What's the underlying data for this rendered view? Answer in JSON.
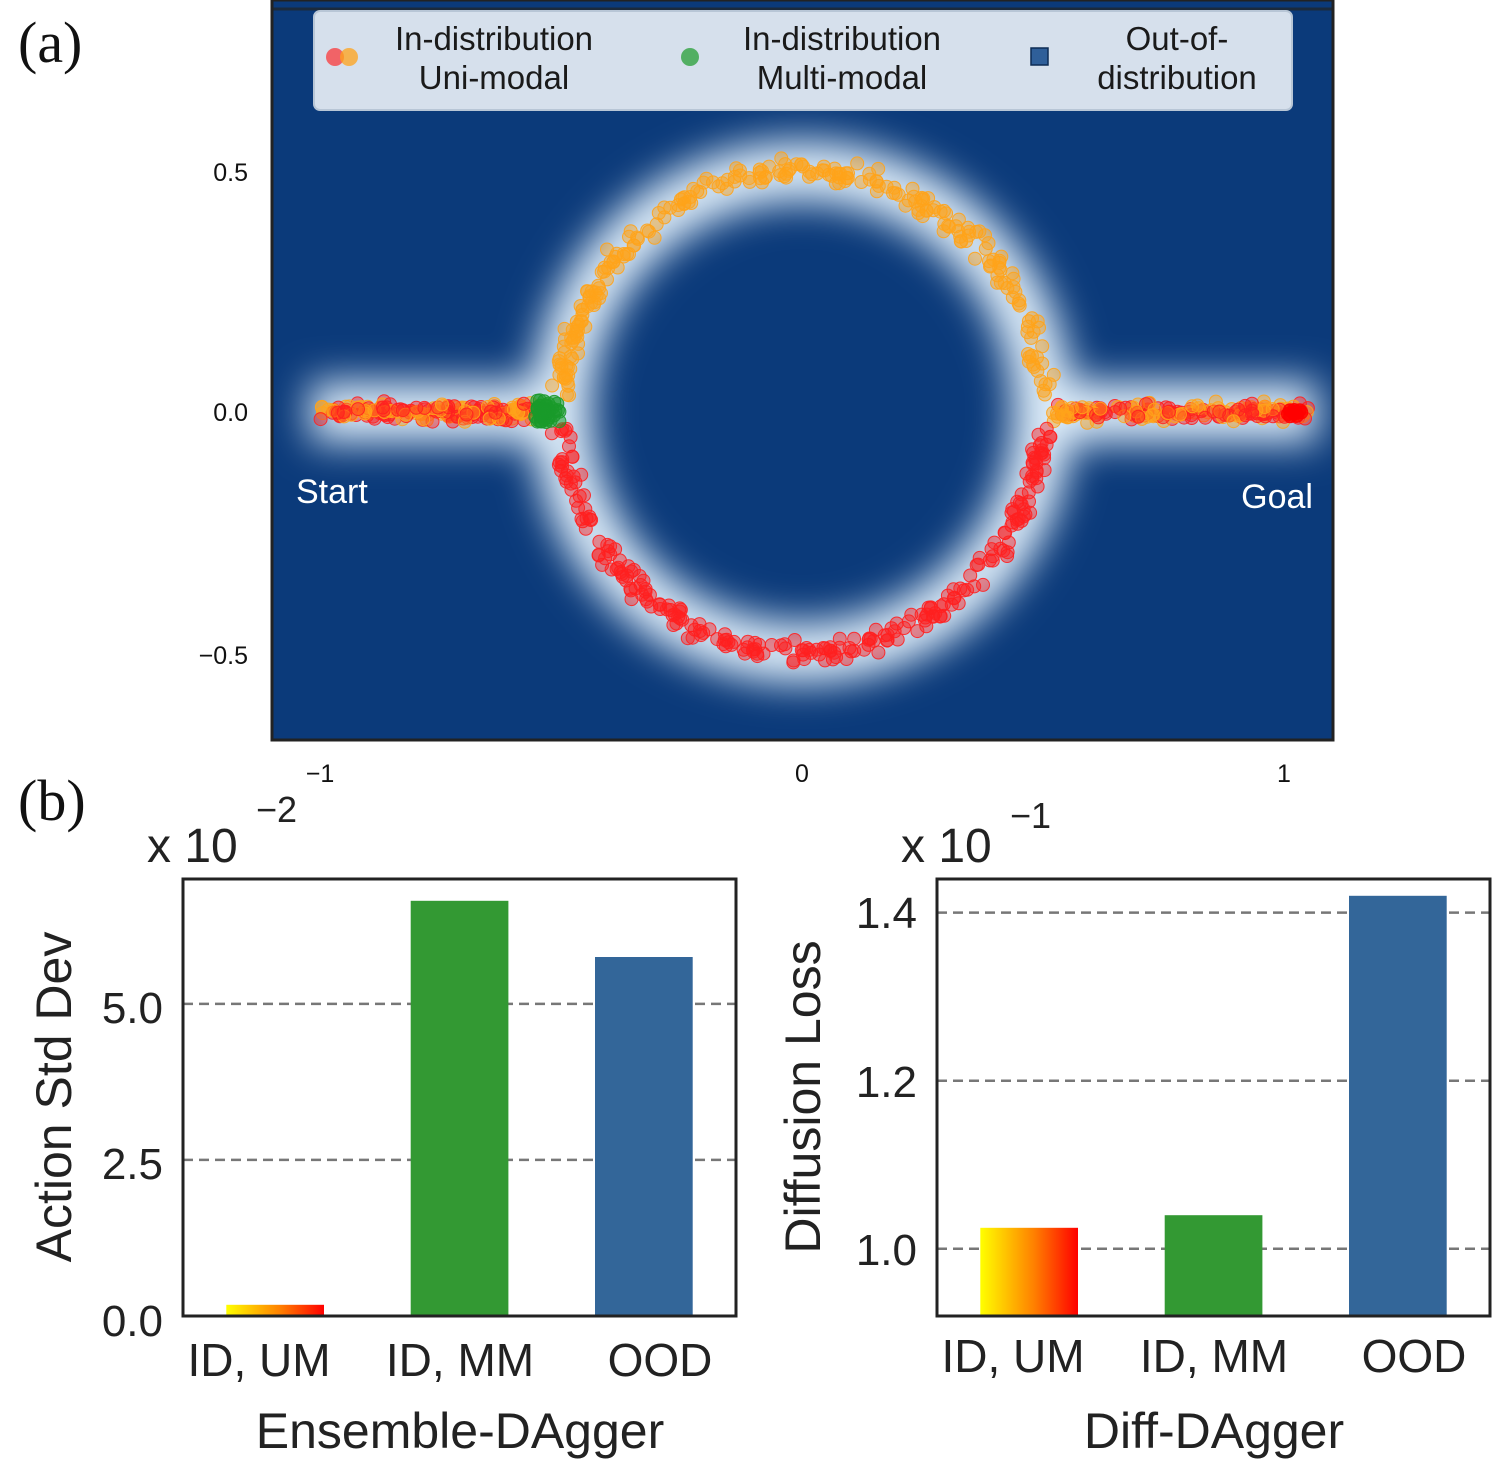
{
  "panel_labels": {
    "a": "(a)",
    "b": "(b)"
  },
  "chart_data": [
    {
      "id": "panel-a",
      "type": "scatter",
      "title": "",
      "xlabel": "",
      "ylabel": "",
      "xlim": [
        -1.1,
        1.1
      ],
      "ylim": [
        -0.68,
        0.84
      ],
      "x_ticks": [
        -1,
        0,
        1
      ],
      "x_tick_labels": [
        "−1",
        "0",
        "1"
      ],
      "y_ticks": [
        0.5,
        0.0,
        -0.5
      ],
      "y_tick_labels": [
        "0.5",
        "0.0",
        "−0.5"
      ],
      "background_color": "#0b3a7a",
      "annotations": [
        {
          "text": "Start",
          "x": -1.05,
          "y": -0.17
        },
        {
          "text": "Goal",
          "x": 1.05,
          "y": -0.18
        }
      ],
      "legend": {
        "placement": "top-center",
        "entries": [
          {
            "label_lines": [
              "In-distribution",
              "Uni-modal"
            ],
            "marker": "circle",
            "colors": [
              "#ff2020",
              "#ffa31a"
            ]
          },
          {
            "label_lines": [
              "In-distribution",
              "Multi-modal"
            ],
            "marker": "circle",
            "colors": [
              "#1a9a2a"
            ]
          },
          {
            "label_lines": [
              "Out-of-",
              "distribution"
            ],
            "marker": "square",
            "colors": [
              "#2f5f99"
            ]
          }
        ]
      },
      "series": [
        {
          "name": "In-distribution Uni-modal (upper path)",
          "color": "#ffa31a",
          "path": {
            "shape": "upper semicircle + straight segments",
            "circle_center": [
              0,
              0
            ],
            "circle_radius": 0.5,
            "straight_y": 0.0,
            "x_range": [
              -1.0,
              1.05
            ]
          }
        },
        {
          "name": "In-distribution Uni-modal (lower path)",
          "color": "#ff2020",
          "path": {
            "shape": "lower semicircle + straight segments",
            "circle_center": [
              0,
              0
            ],
            "circle_radius": 0.5,
            "straight_y": 0.0,
            "x_range": [
              -1.0,
              1.05
            ]
          }
        },
        {
          "name": "In-distribution Multi-modal",
          "color": "#1a9a2a",
          "cluster": {
            "x": -0.53,
            "y": 0.0,
            "spread": 0.035
          }
        }
      ]
    },
    {
      "id": "panel-b-left",
      "type": "bar",
      "categories": [
        "ID, UM",
        "ID, MM",
        "OOD"
      ],
      "values": [
        0.18,
        6.65,
        5.75
      ],
      "bar_colors": [
        "gradient-yellow-red",
        "#339933",
        "#336699"
      ],
      "xlabel": "Ensemble-DAgger",
      "ylabel": "Action Std Dev",
      "scale_label_base": "x 10",
      "scale_label_exp": "−2",
      "ylim": [
        0,
        7.0
      ],
      "y_ticks": [
        0.0,
        2.5,
        5.0
      ],
      "y_tick_labels": [
        "0.0",
        "2.5",
        "5.0"
      ],
      "grid_lines": [
        2.5,
        5.0
      ]
    },
    {
      "id": "panel-b-right",
      "type": "bar",
      "categories": [
        "ID, UM",
        "ID, MM",
        "OOD"
      ],
      "values": [
        1.025,
        1.04,
        1.42
      ],
      "bar_colors": [
        "gradient-yellow-red",
        "#339933",
        "#336699"
      ],
      "xlabel": "Diff-DAgger",
      "ylabel": "Diffusion Loss",
      "scale_label_base": "x 10",
      "scale_label_exp": "−1",
      "ylim": [
        0.92,
        1.44
      ],
      "y_ticks": [
        1.0,
        1.2,
        1.4
      ],
      "y_tick_labels": [
        "1.0",
        "1.2",
        "1.4"
      ],
      "grid_lines": [
        1.0,
        1.2,
        1.4
      ]
    }
  ]
}
